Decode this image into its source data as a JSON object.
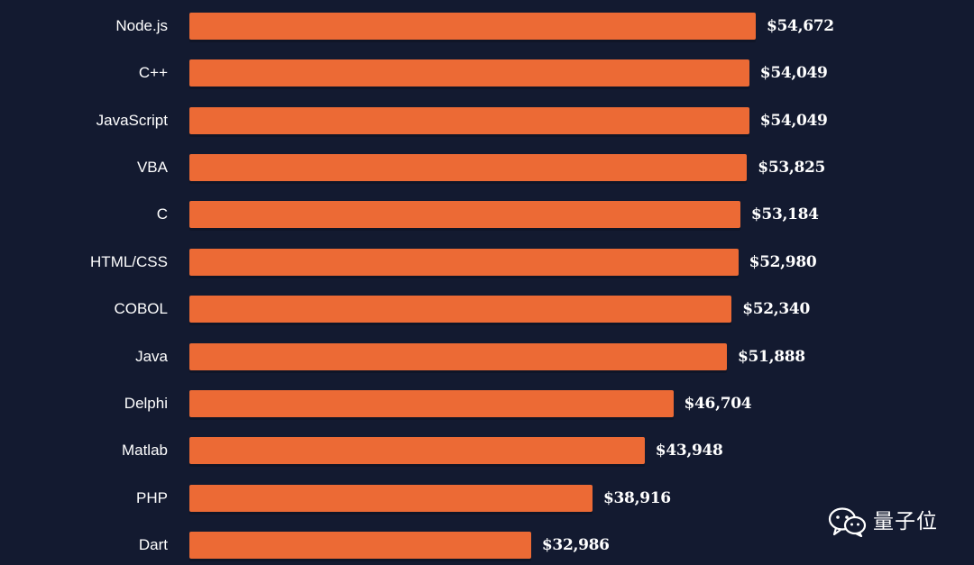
{
  "chart_data": {
    "type": "bar",
    "orientation": "horizontal",
    "categories": [
      "Node.js",
      "C++",
      "JavaScript",
      "VBA",
      "C",
      "HTML/CSS",
      "COBOL",
      "Java",
      "Delphi",
      "Matlab",
      "PHP",
      "Dart"
    ],
    "values": [
      54672,
      54049,
      54049,
      53825,
      53184,
      52980,
      52340,
      51888,
      46704,
      43948,
      38916,
      32986
    ],
    "value_labels": [
      "$54,672",
      "$54,049",
      "$54,049",
      "$53,825",
      "$53,184",
      "$52,980",
      "$52,340",
      "$51,888",
      "$46,704",
      "$43,948",
      "$38,916",
      "$32,986"
    ],
    "xlim": [
      0,
      54672
    ],
    "title": "",
    "xlabel": "",
    "ylabel": "",
    "grid": false,
    "legend": "none",
    "colors": {
      "background": "#131a30",
      "bar": "#ec6a35",
      "text": "#ffffff"
    }
  },
  "watermark": {
    "text": "量子位",
    "icon": "wechat-icon"
  }
}
